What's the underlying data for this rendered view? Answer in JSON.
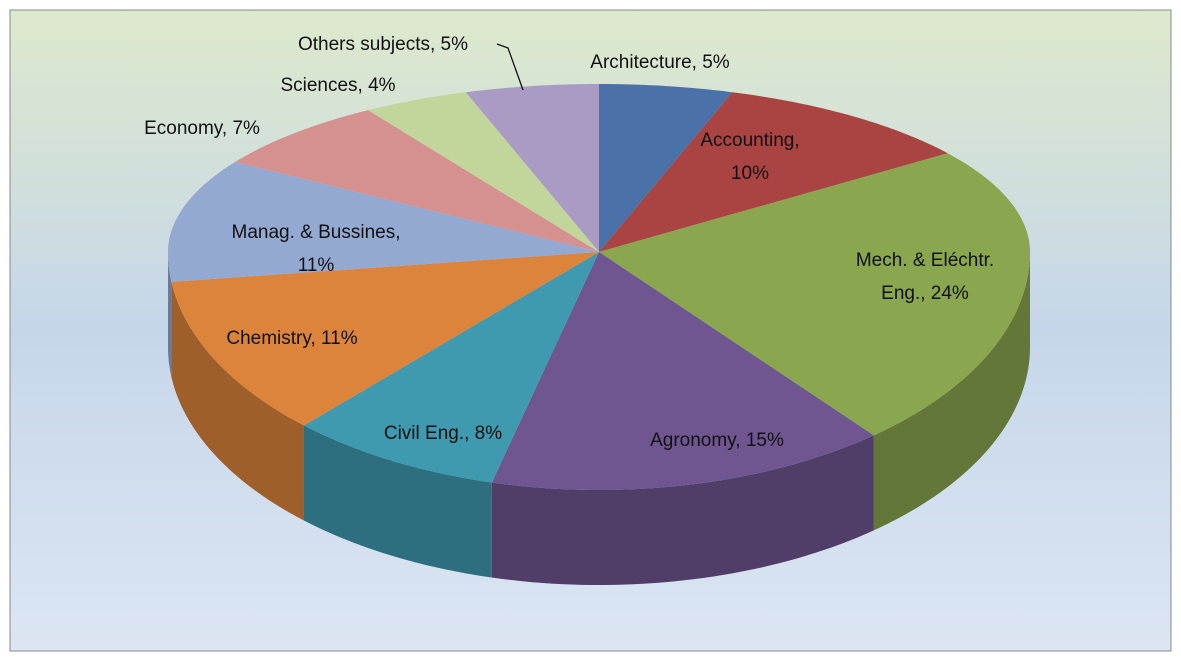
{
  "chart_data": {
    "type": "pie3d",
    "categories": [
      "Architecture",
      "Accounting",
      "Mech. & Eléchtr. Eng.",
      "Agronomy",
      "Civil Eng.",
      "Chemistry",
      "Manag. & Bussines",
      "Economy",
      "Sciences",
      "Others subjects"
    ],
    "values": [
      5,
      10,
      24,
      15,
      8,
      11,
      11,
      7,
      4,
      5
    ],
    "value_labels": [
      [
        "Architecture, 5%"
      ],
      [
        "Accounting,",
        "10%"
      ],
      [
        "Mech. & Eléchtr.",
        "Eng., 24%"
      ],
      [
        "Agronomy, 15%"
      ],
      [
        "Civil Eng., 8%"
      ],
      [
        "Chemistry, 11%"
      ],
      [
        "Manag. & Bussines,",
        "11%"
      ],
      [
        "Economy, 7%"
      ],
      [
        "Sciences, 4%"
      ],
      [
        "Others subjects, 5%"
      ]
    ],
    "colors": [
      "#4a72a8",
      "#a94442",
      "#8aa64e",
      "#6f5690",
      "#3f9ab0",
      "#dd843c",
      "#93a9d1",
      "#d59190",
      "#c2d69b",
      "#a99bc3"
    ]
  }
}
